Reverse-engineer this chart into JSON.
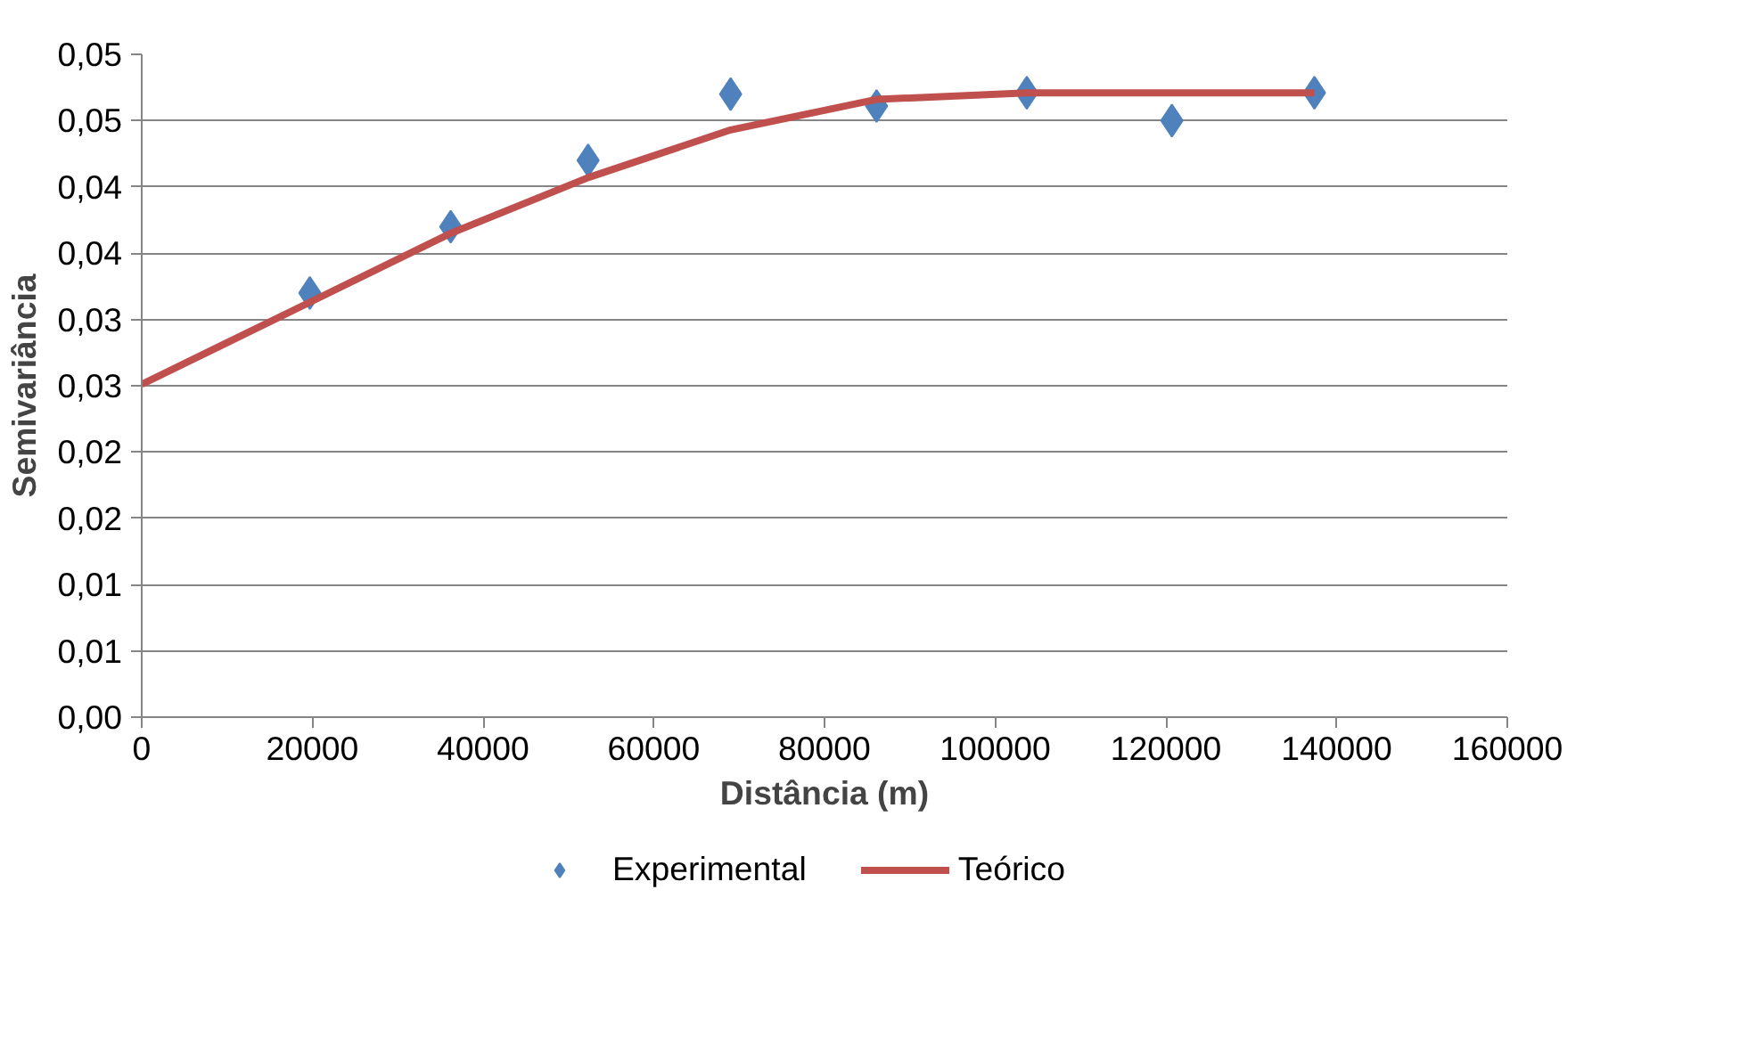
{
  "chart_data": {
    "type": "scatter",
    "xlabel": "Distância (m)",
    "ylabel": "Semivariância",
    "xlim": [
      0,
      160000
    ],
    "xticks": [
      0,
      20000,
      40000,
      60000,
      80000,
      100000,
      120000,
      140000,
      160000
    ],
    "ylim": [
      0,
      0.05
    ],
    "yticks": [
      {
        "value": 0,
        "label": "0,00"
      },
      {
        "value": 0.005,
        "label": "0,01"
      },
      {
        "value": 0.01,
        "label": "0,01"
      },
      {
        "value": 0.015,
        "label": "0,02"
      },
      {
        "value": 0.02,
        "label": "0,02"
      },
      {
        "value": 0.025,
        "label": "0,03"
      },
      {
        "value": 0.03,
        "label": "0,03"
      },
      {
        "value": 0.035,
        "label": "0,04"
      },
      {
        "value": 0.04,
        "label": "0,04"
      },
      {
        "value": 0.045,
        "label": "0,05"
      },
      {
        "value": 0.05,
        "label": "0,05"
      }
    ],
    "grid": "y",
    "legend": "bottom",
    "series": [
      {
        "name": "Experimental",
        "type": "scatter",
        "marker": "diamond",
        "color": "#4f81bd",
        "x": [
          19700,
          36200,
          52300,
          69000,
          86100,
          103700,
          120700,
          137400
        ],
        "values": [
          0.032,
          0.037,
          0.042,
          0.047,
          0.0461,
          0.0471,
          0.045,
          0.0471
        ]
      },
      {
        "name": "Teórico",
        "type": "line",
        "marker": "none",
        "color": "#c0504d",
        "x": [
          0,
          19700,
          36200,
          52300,
          69000,
          86100,
          103700,
          120700,
          137400
        ],
        "values": [
          0.0251,
          0.0313,
          0.0365,
          0.0407,
          0.0443,
          0.0466,
          0.0471,
          0.0471,
          0.0471
        ]
      }
    ]
  }
}
